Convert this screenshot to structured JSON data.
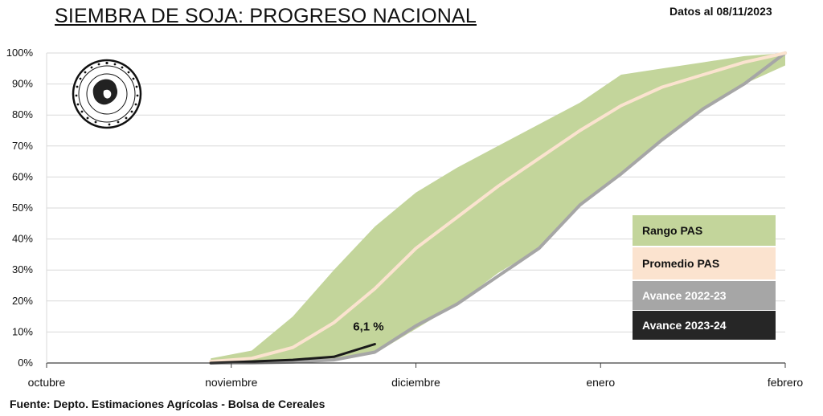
{
  "header": {
    "title": "SIEMBRA DE SOJA: PROGRESO NACIONAL",
    "date": "Datos al 08/11/2023"
  },
  "footer": {
    "source": "Fuente: Depto. Estimaciones Agrícolas - Bolsa de Cereales"
  },
  "seal": {
    "text": "Bolsa de Cereales Buenos Aires 1854"
  },
  "chart_data": {
    "type": "area",
    "title": "SIEMBRA DE SOJA: PROGRESO NACIONAL",
    "x_tick_labels": [
      "octubre",
      "noviembre",
      "diciembre",
      "enero",
      "febrero"
    ],
    "y_tick_labels": [
      "0%",
      "10%",
      "20%",
      "30%",
      "40%",
      "50%",
      "60%",
      "70%",
      "80%",
      "90%",
      "100%"
    ],
    "ylim": [
      0,
      100
    ],
    "grid": true,
    "legend_position": "right",
    "x_dates": [
      "10-01",
      "10-08",
      "10-15",
      "10-22",
      "10-29",
      "11-05",
      "11-12",
      "11-19",
      "11-26",
      "12-03",
      "12-10",
      "12-17",
      "12-24",
      "12-31",
      "01-07",
      "01-14",
      "01-21",
      "01-28",
      "02-04"
    ],
    "series": [
      {
        "name": "Rango PAS",
        "kind": "range",
        "upper": [
          null,
          null,
          null,
          null,
          1.5,
          4,
          15,
          30,
          44,
          55,
          63,
          70,
          77,
          84,
          93,
          95,
          97,
          99,
          100
        ],
        "lower": [
          null,
          null,
          null,
          null,
          0,
          0,
          0.5,
          1,
          3,
          11,
          19,
          29,
          37,
          51,
          61,
          72,
          82,
          90,
          96
        ]
      },
      {
        "name": "Promedio PAS",
        "kind": "line",
        "values": [
          null,
          null,
          null,
          null,
          0.5,
          1.5,
          5,
          13,
          24,
          37,
          47,
          57,
          66,
          75,
          83,
          89,
          93,
          97,
          100
        ]
      },
      {
        "name": "Avance 2022-23",
        "kind": "line",
        "values": [
          null,
          null,
          null,
          null,
          0,
          0,
          0.3,
          1,
          3.5,
          12,
          19,
          28,
          37,
          51,
          61,
          72,
          82,
          90,
          100
        ]
      },
      {
        "name": "Avance 2023-24",
        "kind": "line",
        "values": [
          null,
          null,
          null,
          null,
          0,
          0.5,
          1,
          2,
          6.1
        ]
      }
    ],
    "annotations": [
      {
        "text": "6,1 %",
        "x": "11-26",
        "y": 6.1
      }
    ],
    "colors": {
      "range": "#c3d59b",
      "promedio": "#fbe3cf",
      "avance_2022_23": "#a6a6a6",
      "avance_2023_24": "#1a1a1a"
    }
  }
}
